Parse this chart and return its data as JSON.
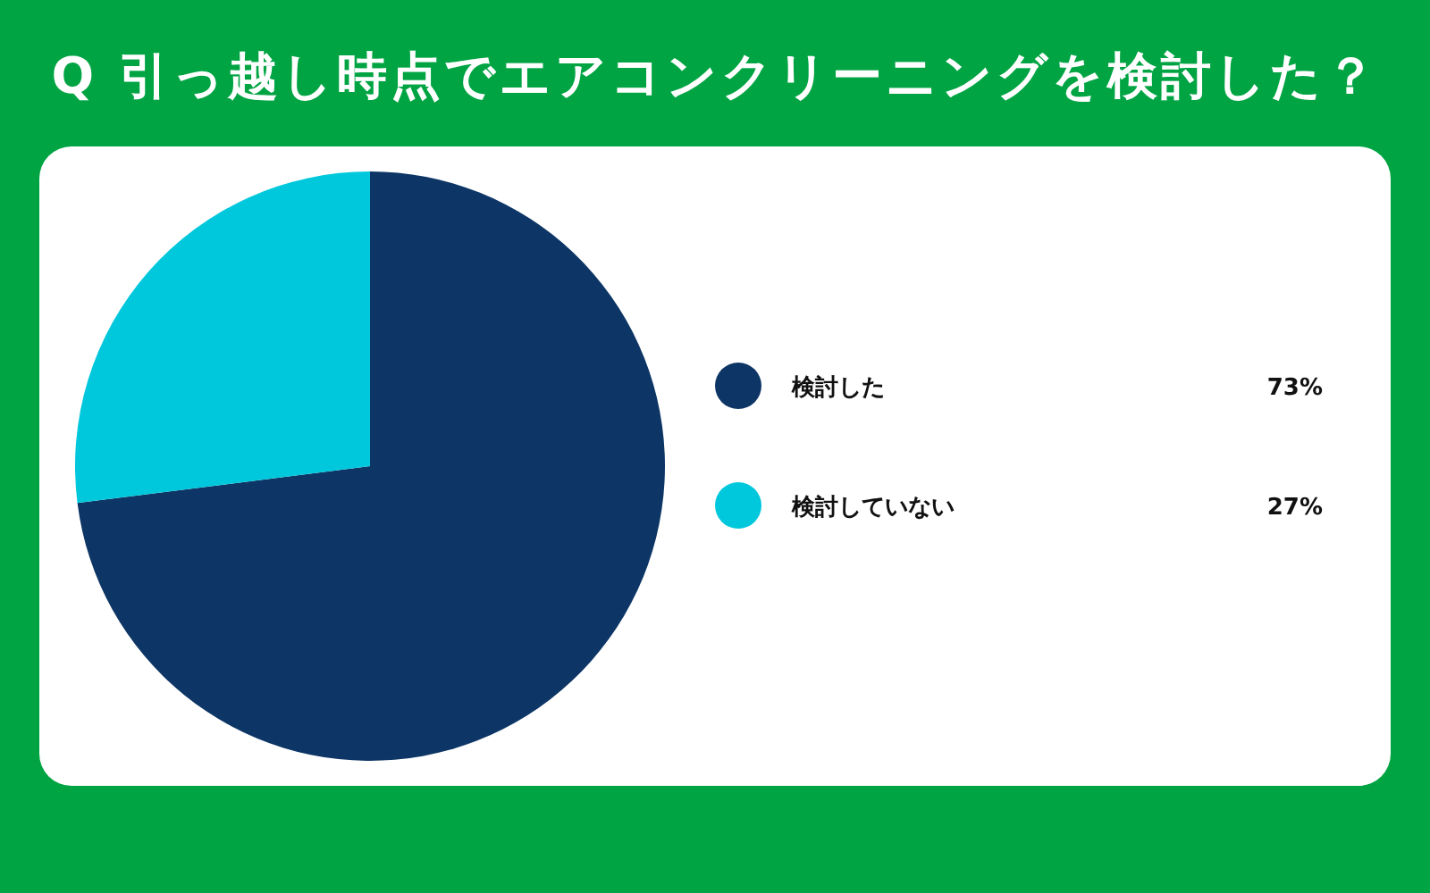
{
  "chart_data": {
    "type": "pie",
    "title": "Q 引っ越し時点でエアコンクリーニングを検討した？",
    "categories": [
      "検討した",
      "検討していない"
    ],
    "values": [
      73,
      27
    ],
    "colors": [
      "#0d3666",
      "#00c8dc"
    ],
    "value_labels": [
      "73%",
      "27%"
    ],
    "legend": "right"
  }
}
